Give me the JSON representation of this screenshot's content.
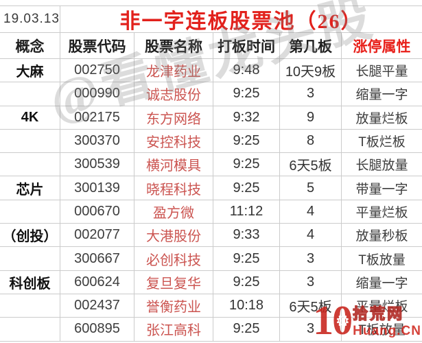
{
  "header": {
    "date": "19.03.13",
    "title": "非一字连板股票池（26）"
  },
  "watermark": "@看懂龙头股",
  "logo": {
    "number": "10",
    "gear_icon": "⚙",
    "site_name_cn": "拾荒网",
    "site_domain": "Huang.CN"
  },
  "colors": {
    "title_red": "#e2211c",
    "attr_header_red": "#e8201a",
    "stock_name_red": "#cb5450",
    "logo_red": "#c8231b",
    "grid_border": "#cbcbcb"
  },
  "chart_data": {
    "type": "table",
    "title": "非一字连板股票池（26）",
    "date": "19.03.13",
    "columns": [
      "概念",
      "股票代码",
      "股票名称",
      "打板时间",
      "第几板",
      "涨停属性"
    ],
    "rows": [
      [
        "大麻",
        "002750",
        "龙津药业",
        "9:48",
        "10天9板",
        "长腿平量"
      ],
      [
        "",
        "000990",
        "诚志股份",
        "9:25",
        "3",
        "缩量一字"
      ],
      [
        "4K",
        "002175",
        "东方网络",
        "9:32",
        "9",
        "放量烂板"
      ],
      [
        "",
        "300370",
        "安控科技",
        "9:25",
        "8",
        "T板烂板"
      ],
      [
        "",
        "300539",
        "横河模具",
        "9:25",
        "6天5板",
        "长腿放量"
      ],
      [
        "芯片",
        "300139",
        "晓程科技",
        "9:25",
        "5",
        "带量一字"
      ],
      [
        "",
        "000670",
        "盈方微",
        "11:12",
        "4",
        "平量烂板"
      ],
      [
        "（创投）",
        "002077",
        "大港股份",
        "9:33",
        "4",
        "放量秒板"
      ],
      [
        "",
        "300667",
        "必创科技",
        "9:25",
        "3",
        "T板放量"
      ],
      [
        "科创板",
        "600624",
        "复旦复华",
        "9:25",
        "3",
        "缩量一字"
      ],
      [
        "",
        "002437",
        "誉衡药业",
        "10:18",
        "6天5板",
        "平量烂板"
      ],
      [
        "",
        "600895",
        "张江高科",
        "9:25",
        "3",
        "T板放量"
      ]
    ]
  }
}
